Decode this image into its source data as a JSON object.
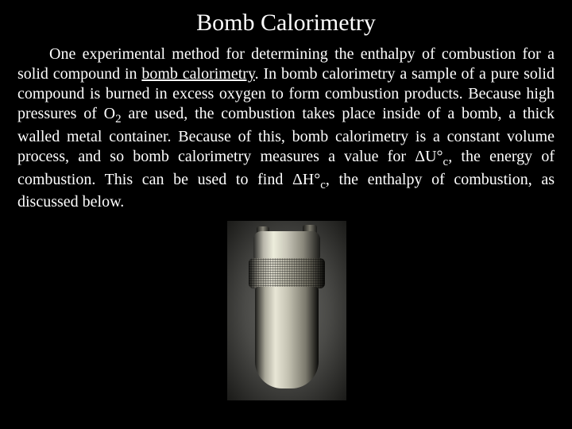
{
  "title": "Bomb Calorimetry",
  "paragraph": {
    "p1": "One experimental method for determining the enthalpy of combustion for a solid compound in ",
    "u1": "bomb calorimetry",
    "p2": ".  In bomb calorimetry a sample of a pure solid compound is burned in excess oxygen to form combustion products.  Because high pressures of O",
    "sub1": "2",
    "p3": " are used, the combustion takes place inside of a bomb, a thick walled metal container.  Because of this, bomb calorimetry is a constant volume process, and so bomb calorimetry measures a value for ΔU°",
    "sub2": "c",
    "p4": ", the energy of combustion.  This can be used to find ΔH°",
    "sub3": "c",
    "p5": ", the enthalpy of combustion, as discussed below."
  },
  "image": {
    "alt": "bomb calorimeter vessel"
  },
  "colors": {
    "background": "#000000",
    "text": "#ffffff"
  }
}
